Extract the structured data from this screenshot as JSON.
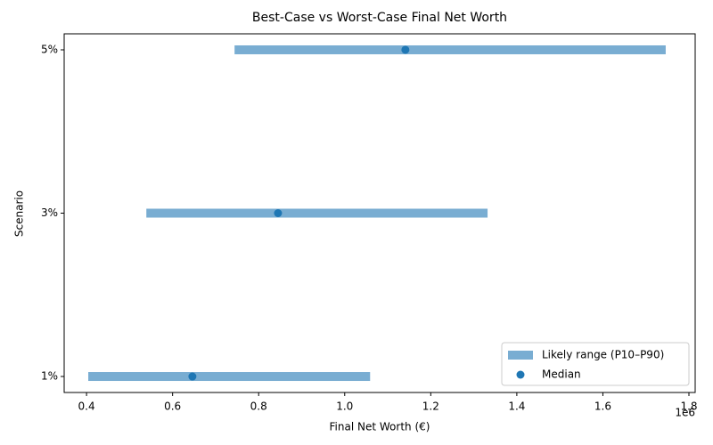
{
  "chart_data": {
    "type": "range",
    "title": "Best-Case vs Worst-Case Final Net Worth",
    "xlabel": "Final Net Worth (€)",
    "ylabel": "Scenario",
    "x_offset_label": "1e6",
    "categories": [
      "1%",
      "3%",
      "5%"
    ],
    "series": [
      {
        "name": "Likely range (P10–P90)",
        "color": "#1f77b4",
        "low": [
          404000,
          539000,
          744000
        ],
        "high": [
          1059000,
          1332000,
          1746000
        ]
      },
      {
        "name": "Median",
        "color": "#1f77b4",
        "values": [
          646000,
          845000,
          1141000
        ]
      }
    ],
    "xlim": [
      348000,
      1814500
    ],
    "xticks": [
      {
        "value": 400000,
        "label": "0.4"
      },
      {
        "value": 600000,
        "label": "0.6"
      },
      {
        "value": 800000,
        "label": "0.8"
      },
      {
        "value": 1000000,
        "label": "1.0"
      },
      {
        "value": 1200000,
        "label": "1.2"
      },
      {
        "value": 1400000,
        "label": "1.4"
      },
      {
        "value": 1600000,
        "label": "1.6"
      },
      {
        "value": 1800000,
        "label": "1.8"
      }
    ],
    "legend": "lower right"
  }
}
